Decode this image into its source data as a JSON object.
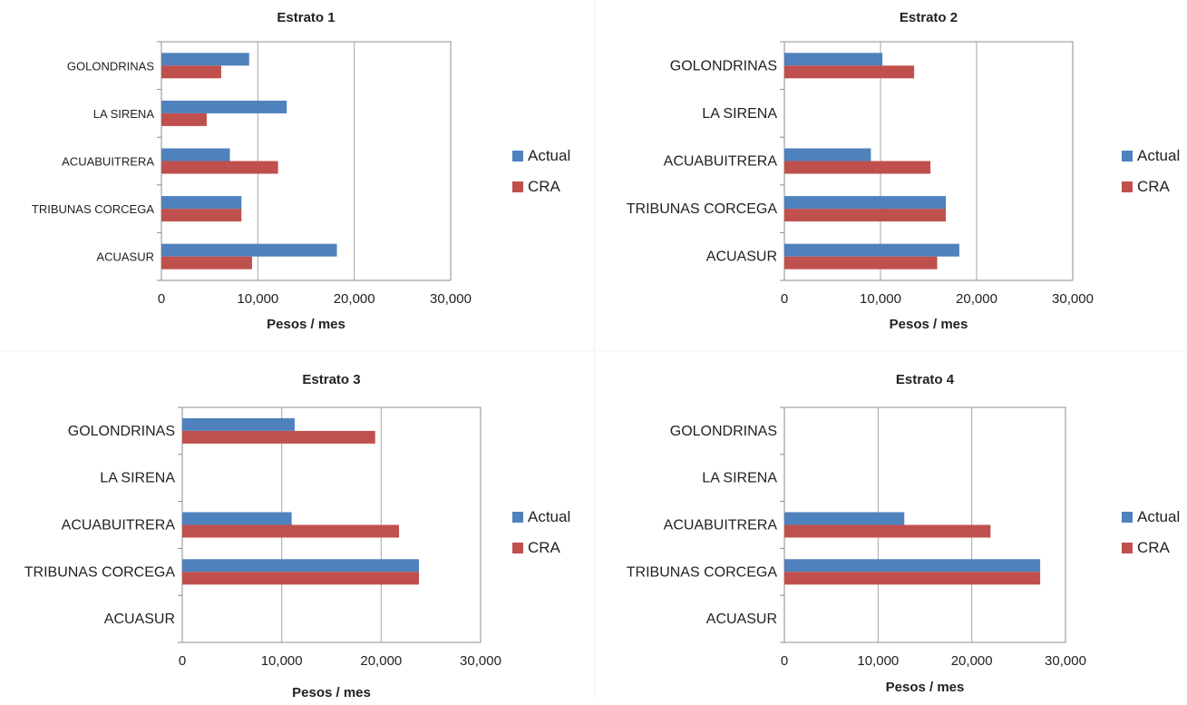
{
  "chart_data": [
    {
      "type": "bar",
      "orientation": "horizontal",
      "title": "Estrato 1",
      "xlabel": "Pesos / mes",
      "categories": [
        "GOLONDRINAS",
        "LA SIRENA",
        "ACUABUITRERA",
        "TRIBUNAS CORCEGA",
        "ACUASUR"
      ],
      "series": [
        {
          "name": "Actual",
          "color": "#4f81bd",
          "values": [
            9100,
            13000,
            7100,
            8300,
            18200
          ]
        },
        {
          "name": "CRA",
          "color": "#c0504d",
          "values": [
            6200,
            4700,
            12100,
            8300,
            9400
          ]
        }
      ],
      "xlim": [
        0,
        30000
      ],
      "xticks": [
        "0",
        "10,000",
        "20,000",
        "30,000"
      ],
      "grid": true,
      "legend": "right"
    },
    {
      "type": "bar",
      "orientation": "horizontal",
      "title": "Estrato 2",
      "xlabel": "Pesos / mes",
      "categories": [
        "GOLONDRINAS",
        "LA SIRENA",
        "ACUABUITRERA",
        "TRIBUNAS CORCEGA",
        "ACUASUR"
      ],
      "series": [
        {
          "name": "Actual",
          "color": "#4f81bd",
          "values": [
            10200,
            null,
            9000,
            16800,
            18200
          ]
        },
        {
          "name": "CRA",
          "color": "#c0504d",
          "values": [
            13500,
            null,
            15200,
            16800,
            15900
          ]
        }
      ],
      "xlim": [
        0,
        30000
      ],
      "xticks": [
        "0",
        "10,000",
        "20,000",
        "30,000"
      ],
      "grid": true,
      "legend": "right"
    },
    {
      "type": "bar",
      "orientation": "horizontal",
      "title": "Estrato 3",
      "xlabel": "Pesos / mes",
      "categories": [
        "GOLONDRINAS",
        "LA SIRENA",
        "ACUABUITRERA",
        "TRIBUNAS CORCEGA",
        "ACUASUR"
      ],
      "series": [
        {
          "name": "Actual",
          "color": "#4f81bd",
          "values": [
            11300,
            null,
            11000,
            23800,
            null
          ]
        },
        {
          "name": "CRA",
          "color": "#c0504d",
          "values": [
            19400,
            null,
            21800,
            23800,
            null
          ]
        }
      ],
      "xlim": [
        0,
        30000
      ],
      "xticks": [
        "0",
        "10,000",
        "20,000",
        "30,000"
      ],
      "grid": true,
      "legend": "right"
    },
    {
      "type": "bar",
      "orientation": "horizontal",
      "title": "Estrato 4",
      "xlabel": "Pesos / mes",
      "categories": [
        "GOLONDRINAS",
        "LA SIRENA",
        "ACUABUITRERA",
        "TRIBUNAS CORCEGA",
        "ACUASUR"
      ],
      "series": [
        {
          "name": "Actual",
          "color": "#4f81bd",
          "values": [
            null,
            null,
            12800,
            27300,
            null
          ]
        },
        {
          "name": "CRA",
          "color": "#c0504d",
          "values": [
            null,
            null,
            22000,
            27300,
            null
          ]
        }
      ],
      "xlim": [
        0,
        30000
      ],
      "xticks": [
        "0",
        "10,000",
        "20,000",
        "30,000"
      ],
      "grid": true,
      "legend": "right"
    }
  ]
}
